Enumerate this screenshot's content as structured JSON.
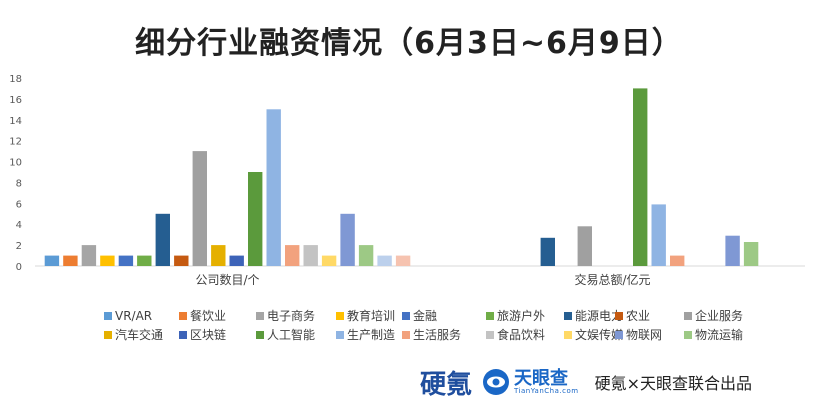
{
  "title": "细分行业融资情况（6月3日~6月9日）",
  "footer": {
    "logo1": "硬氪",
    "logo2_main": "天眼查",
    "logo2_sub": "TianYanCha.com",
    "credit": "硬氪×天眼查联合出品"
  },
  "chart_data": {
    "type": "bar",
    "categories": [
      "公司数目/个",
      "交易总额/亿元"
    ],
    "ylim": [
      0,
      18
    ],
    "yticks": [
      0,
      2,
      4,
      6,
      8,
      10,
      12,
      14,
      16,
      18
    ],
    "grid": false,
    "legend_position": "bottom",
    "series": [
      {
        "name": "VR/AR",
        "color": "#5b9bd5",
        "values": [
          1,
          0
        ]
      },
      {
        "name": "餐饮业",
        "color": "#ed7d31",
        "values": [
          1,
          0
        ]
      },
      {
        "name": "电子商务",
        "color": "#a5a5a5",
        "values": [
          2,
          0
        ]
      },
      {
        "name": "教育培训",
        "color": "#ffc000",
        "values": [
          1,
          0
        ]
      },
      {
        "name": "金融",
        "color": "#4472c4",
        "values": [
          1,
          0
        ]
      },
      {
        "name": "旅游户外",
        "color": "#70ad47",
        "values": [
          1,
          0
        ]
      },
      {
        "name": "能源电力",
        "color": "#255e91",
        "values": [
          5,
          2.7
        ]
      },
      {
        "name": "农业",
        "color": "#c55a11",
        "values": [
          1,
          0
        ]
      },
      {
        "name": "企业服务",
        "color": "#a0a0a0",
        "values": [
          11,
          3.8
        ]
      },
      {
        "name": "汽车交通",
        "color": "#e5b000",
        "values": [
          2,
          0
        ]
      },
      {
        "name": "区块链",
        "color": "#3d63b8",
        "values": [
          1,
          0
        ]
      },
      {
        "name": "人工智能",
        "color": "#5b9a3c",
        "values": [
          9,
          17
        ]
      },
      {
        "name": "生产制造",
        "color": "#8fb4e3",
        "values": [
          15,
          5.9
        ]
      },
      {
        "name": "生活服务",
        "color": "#f2a27e",
        "values": [
          2,
          1
        ]
      },
      {
        "name": "食品饮料",
        "color": "#c3c3c3",
        "values": [
          2,
          0
        ]
      },
      {
        "name": "文娱传媒",
        "color": "#ffd966",
        "values": [
          1,
          0
        ]
      },
      {
        "name": "物联网",
        "color": "#7f98d4",
        "values": [
          5,
          2.9
        ]
      },
      {
        "name": "物流运输",
        "color": "#9dc985",
        "values": [
          2,
          2.3
        ]
      },
      {
        "name": "",
        "color": "#bcd0ec",
        "values": [
          1,
          0
        ]
      },
      {
        "name": "",
        "color": "#f6c3b0",
        "values": [
          1,
          0
        ]
      }
    ]
  }
}
